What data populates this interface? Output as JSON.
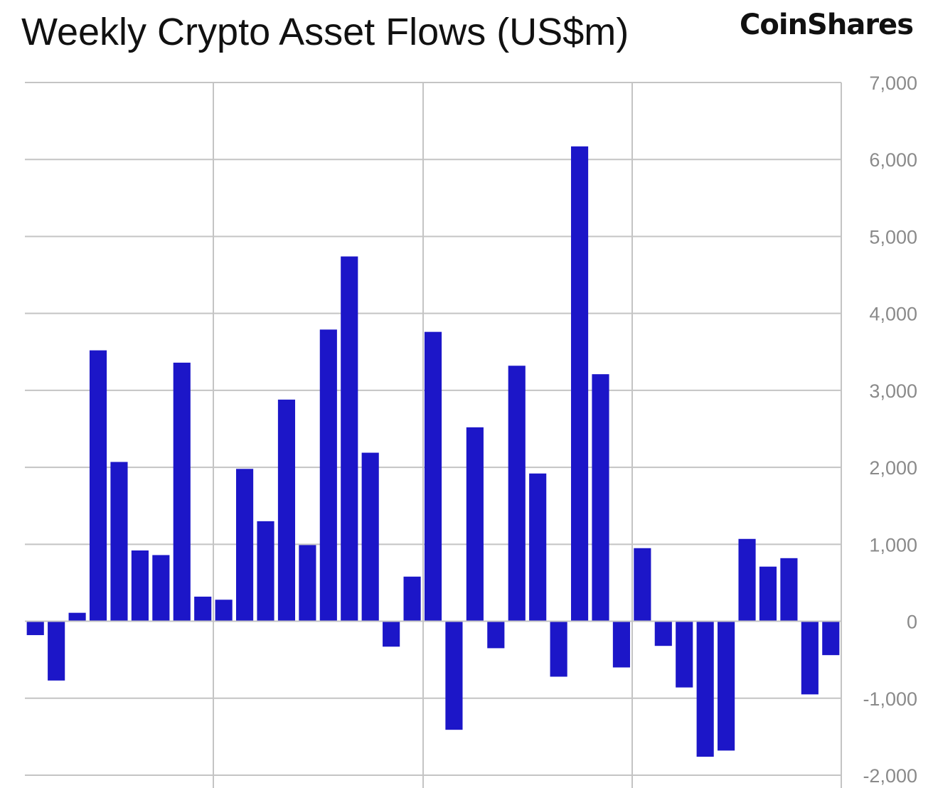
{
  "header": {
    "title": "Weekly Crypto Asset Flows (US$m)",
    "logo_text": "CoinShares"
  },
  "colors": {
    "bar": "#1c16c8",
    "grid": "#c4c4c4",
    "tick_text": "#8a8a8a",
    "title_text": "#111111"
  },
  "chart_data": {
    "type": "bar",
    "title": "Weekly Crypto Asset Flows (US$m)",
    "xlabel": "",
    "ylabel": "",
    "ylim": [
      -2000,
      7000
    ],
    "y_axis_side": "right",
    "yticks": [
      7000,
      6000,
      5000,
      4000,
      3000,
      2000,
      1000,
      0,
      -1000,
      -2000
    ],
    "ytick_labels": [
      "7,000",
      "6,000",
      "5,000",
      "4,000",
      "3,000",
      "2,000",
      "1,000",
      "0",
      "-1,000",
      "-2,000"
    ],
    "grid": true,
    "x_tick_labels_visible": false,
    "values": [
      -180,
      -770,
      110,
      3520,
      2070,
      920,
      860,
      3360,
      320,
      280,
      1980,
      1300,
      2880,
      990,
      3790,
      4740,
      2190,
      -330,
      580,
      3760,
      -1410,
      2520,
      -350,
      3320,
      1920,
      -720,
      6170,
      3210,
      -600,
      950,
      -320,
      -860,
      -1760,
      -1680,
      1070,
      710,
      820,
      -950,
      -440
    ]
  }
}
